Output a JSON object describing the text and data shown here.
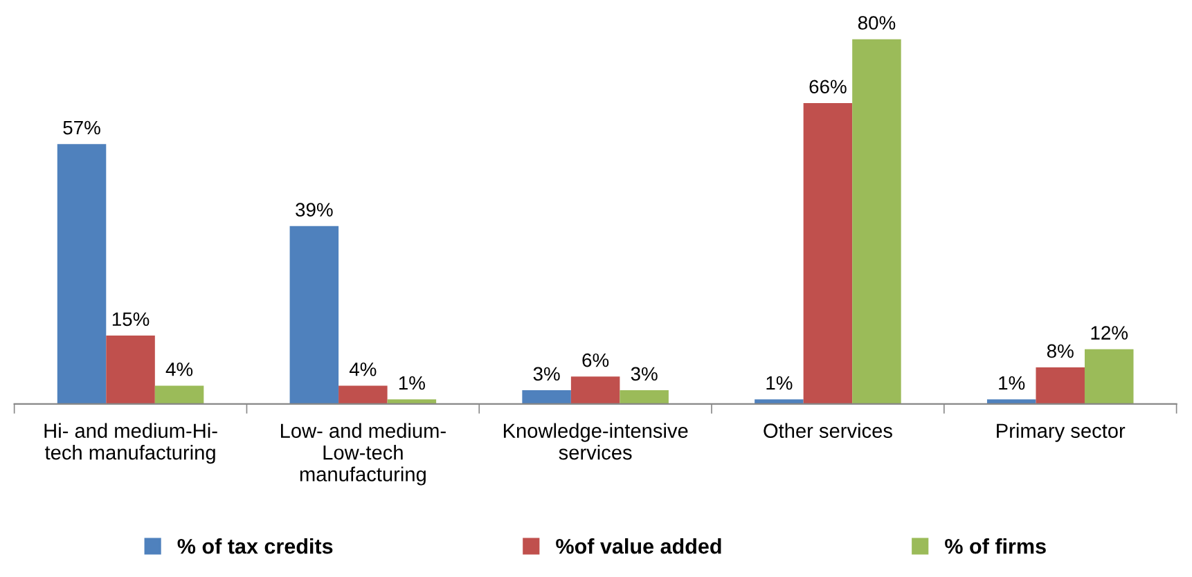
{
  "chart_data": {
    "type": "bar",
    "categories": [
      "Hi- and medium-Hi-\ntech manufacturing",
      "Low- and medium-\nLow-tech\nmanufacturing",
      "Knowledge-intensive\nservices",
      "Other services",
      "Primary sector"
    ],
    "series": [
      {
        "name": "% of tax credits",
        "color": "#4f81bd",
        "values": [
          57,
          39,
          3,
          1,
          1
        ],
        "value_labels": [
          "57%",
          "39%",
          "3%",
          "1%",
          "1%"
        ]
      },
      {
        "name": "%of value added",
        "color": "#c0504d",
        "values": [
          15,
          4,
          6,
          66,
          8
        ],
        "value_labels": [
          "15%",
          "4%",
          "6%",
          "66%",
          "8%"
        ]
      },
      {
        "name": "% of firms",
        "color": "#9bbb59",
        "values": [
          4,
          1,
          3,
          80,
          12
        ],
        "value_labels": [
          "4%",
          "1%",
          "3%",
          "80%",
          "12%"
        ]
      }
    ],
    "legend": "bottom",
    "tick_labels": "x",
    "grid": false
  }
}
